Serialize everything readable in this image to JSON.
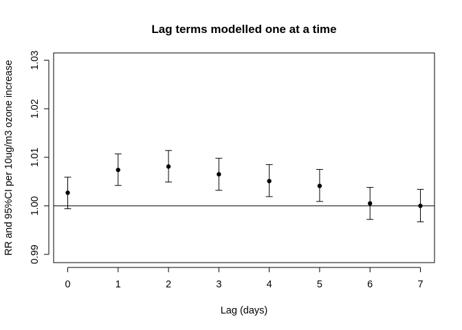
{
  "chart_data": {
    "type": "scatter",
    "title": "Lag terms modelled one at a time",
    "xlabel": "Lag (days)",
    "ylabel": "RR and 95%CI per 10ug/m3 ozone increase",
    "x": [
      0,
      1,
      2,
      3,
      4,
      5,
      6,
      7
    ],
    "x_ticks": [
      "0",
      "1",
      "2",
      "3",
      "4",
      "5",
      "6",
      "7"
    ],
    "y_ticks": [
      "0.99",
      "1.00",
      "1.01",
      "1.02",
      "1.03"
    ],
    "xlim": [
      -0.28,
      7.28
    ],
    "ylim": [
      0.9883,
      1.0315
    ],
    "series": [
      {
        "values": [
          1.0027,
          1.0074,
          1.0081,
          1.0065,
          1.0051,
          1.0041,
          1.0005,
          1.0
        ],
        "lower": [
          0.9994,
          1.0042,
          1.0049,
          1.0032,
          1.0019,
          1.0009,
          0.9972,
          0.9967
        ],
        "upper": [
          1.0059,
          1.0107,
          1.0114,
          1.0098,
          1.0085,
          1.0075,
          1.0038,
          1.0034
        ]
      }
    ],
    "reference_line": 1.0,
    "grid": false,
    "colors": {
      "marks": "#000000",
      "background": "#ffffff"
    }
  }
}
